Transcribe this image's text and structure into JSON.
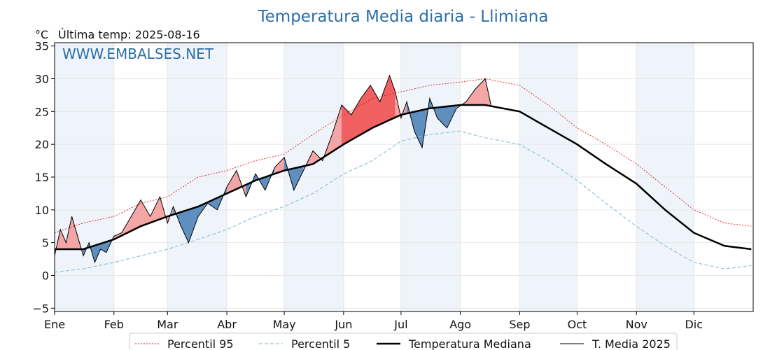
{
  "chart_data": {
    "type": "line",
    "title": "Temperatura Media diaria - Llimiana",
    "unit_label": "°C",
    "last_temp_label": "Última temp: 2025-08-16",
    "watermark": "WWW.EMBALSES.NET",
    "ylim": [
      -5.5,
      35.5
    ],
    "yticks": [
      -5,
      0,
      5,
      10,
      15,
      20,
      25,
      30,
      35
    ],
    "ytick_labels": [
      "−5",
      "0",
      "5",
      "10",
      "15",
      "20",
      "25",
      "30",
      "35"
    ],
    "months": [
      "Ene",
      "Feb",
      "Mar",
      "Abr",
      "May",
      "Jun",
      "Jul",
      "Ago",
      "Sep",
      "Oct",
      "Nov",
      "Dic"
    ],
    "month_start_days": [
      0,
      31,
      59,
      90,
      120,
      151,
      181,
      212,
      243,
      273,
      304,
      334
    ],
    "xlim": [
      0,
      365
    ],
    "grid": true,
    "legend_position": "bottom-center",
    "colors": {
      "p95": "#e41a1c",
      "p5": "#8ec3da",
      "median": "#000000",
      "current": "#000000",
      "above_fill": "#f4a6a6",
      "above_fill_strong": "#f06060",
      "below_fill": "#5e8fbf",
      "title": "#2e6ea6",
      "band": "#eef4fa"
    },
    "series": [
      {
        "key": "p95",
        "name": "Percentil 95",
        "x": [
          0,
          15,
          31,
          45,
          59,
          75,
          90,
          105,
          120,
          135,
          151,
          166,
          181,
          196,
          212,
          225,
          243,
          258,
          273,
          288,
          304,
          319,
          334,
          350,
          364
        ],
        "values": [
          6.5,
          8.0,
          9.0,
          11.0,
          12.0,
          15.0,
          16.0,
          17.5,
          18.5,
          21.5,
          24.5,
          27.0,
          28.0,
          29.0,
          29.5,
          30.0,
          29.0,
          26.0,
          22.5,
          20.0,
          17.0,
          13.5,
          10.0,
          8.0,
          7.5
        ]
      },
      {
        "key": "p5",
        "name": "Percentil 5",
        "x": [
          0,
          15,
          31,
          45,
          59,
          75,
          90,
          105,
          120,
          135,
          151,
          166,
          181,
          196,
          212,
          225,
          243,
          258,
          273,
          288,
          304,
          319,
          334,
          350,
          364
        ],
        "values": [
          0.5,
          1.0,
          2.0,
          3.0,
          4.0,
          5.5,
          7.0,
          9.0,
          10.5,
          12.5,
          15.5,
          17.5,
          20.5,
          21.5,
          22.0,
          21.0,
          20.0,
          17.5,
          14.5,
          11.0,
          7.5,
          4.5,
          2.0,
          1.0,
          1.5
        ]
      },
      {
        "key": "median",
        "name": "Temperatura Mediana",
        "x": [
          0,
          15,
          31,
          45,
          59,
          75,
          90,
          105,
          120,
          135,
          151,
          166,
          181,
          196,
          212,
          225,
          243,
          258,
          273,
          288,
          304,
          319,
          334,
          350,
          364
        ],
        "values": [
          4.0,
          4.0,
          5.5,
          7.5,
          9.0,
          10.5,
          12.5,
          14.5,
          16.0,
          17.0,
          20.0,
          22.5,
          24.5,
          25.5,
          26.0,
          26.0,
          25.0,
          22.5,
          20.0,
          17.0,
          14.0,
          10.0,
          6.5,
          4.5,
          4.0
        ]
      },
      {
        "key": "current",
        "name": "T. Media 2025",
        "x": [
          0,
          3,
          6,
          9,
          12,
          15,
          18,
          21,
          24,
          27,
          31,
          35,
          40,
          45,
          50,
          55,
          59,
          62,
          66,
          70,
          75,
          80,
          85,
          90,
          95,
          100,
          105,
          110,
          115,
          120,
          125,
          130,
          135,
          140,
          145,
          150,
          155,
          160,
          165,
          170,
          175,
          178,
          181,
          184,
          188,
          192,
          196,
          200,
          205,
          210,
          215,
          220,
          225,
          228
        ],
        "values": [
          3.0,
          7.0,
          5.0,
          9.0,
          6.0,
          3.0,
          5.0,
          2.0,
          4.0,
          3.5,
          6.0,
          6.5,
          9.0,
          11.5,
          9.0,
          12.0,
          8.0,
          10.5,
          7.5,
          5.0,
          9.0,
          11.0,
          10.0,
          13.5,
          16.0,
          12.0,
          15.5,
          13.0,
          16.5,
          18.0,
          13.0,
          16.0,
          19.0,
          17.5,
          21.5,
          26.0,
          24.5,
          27.0,
          29.0,
          26.5,
          30.5,
          28.0,
          24.0,
          26.5,
          22.0,
          19.5,
          27.0,
          24.0,
          22.5,
          25.5,
          26.5,
          28.5,
          30.0,
          26.0
        ]
      }
    ]
  }
}
